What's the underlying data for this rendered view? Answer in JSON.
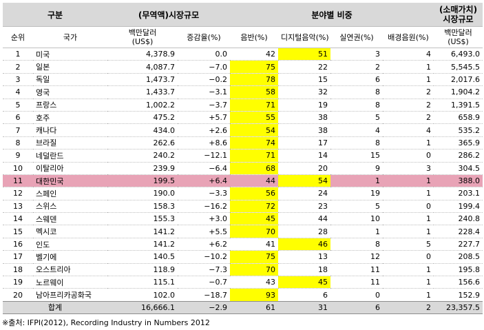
{
  "headers": {
    "group": "구분",
    "market_size": "(무역액)시장규모",
    "share": "분야별 비중",
    "retail_line1": "(소매가치)",
    "retail_line2": "시장규모",
    "rank": "순위",
    "country": "국가",
    "size_unit_line1": "백만달러",
    "size_unit_line2": "(US$)",
    "change": "증감율(%)",
    "physical": "음반(%)",
    "digital": "디지털음악(%)",
    "performance": "실연권(%)",
    "sync": "배경음원(%)",
    "retail_unit_line1": "백만달러",
    "retail_unit_line2": "(US$)"
  },
  "rows": [
    {
      "rank": "1",
      "country": "미국",
      "size": "4,378.9",
      "change": "0.0",
      "physical": "42",
      "digital": "51",
      "performance": "3",
      "sync": "4",
      "retail": "6,493.0"
    },
    {
      "rank": "2",
      "country": "일본",
      "size": "4,087.7",
      "change": "−7.0",
      "physical": "75",
      "digital": "22",
      "performance": "2",
      "sync": "1",
      "retail": "5,545.5"
    },
    {
      "rank": "3",
      "country": "독일",
      "size": "1,473.7",
      "change": "−0.2",
      "physical": "78",
      "digital": "15",
      "performance": "6",
      "sync": "1",
      "retail": "2,017.6"
    },
    {
      "rank": "4",
      "country": "영국",
      "size": "1,433.7",
      "change": "−3.1",
      "physical": "58",
      "digital": "32",
      "performance": "8",
      "sync": "2",
      "retail": "1,904.2"
    },
    {
      "rank": "5",
      "country": "프랑스",
      "size": "1,002.2",
      "change": "−3.7",
      "physical": "71",
      "digital": "19",
      "performance": "8",
      "sync": "2",
      "retail": "1,391.5"
    },
    {
      "rank": "6",
      "country": "호주",
      "size": "475.2",
      "change": "+5.7",
      "physical": "55",
      "digital": "38",
      "performance": "5",
      "sync": "2",
      "retail": "658.9"
    },
    {
      "rank": "7",
      "country": "캐나다",
      "size": "434.0",
      "change": "+2.6",
      "physical": "54",
      "digital": "38",
      "performance": "4",
      "sync": "4",
      "retail": "535.2"
    },
    {
      "rank": "8",
      "country": "브라질",
      "size": "262.6",
      "change": "+8.6",
      "physical": "74",
      "digital": "17",
      "performance": "8",
      "sync": "1",
      "retail": "365.9"
    },
    {
      "rank": "9",
      "country": "네덜란드",
      "size": "240.2",
      "change": "−12.1",
      "physical": "71",
      "digital": "14",
      "performance": "15",
      "sync": "0",
      "retail": "286.2"
    },
    {
      "rank": "10",
      "country": "이탈리아",
      "size": "239.9",
      "change": "−6.4",
      "physical": "68",
      "digital": "20",
      "performance": "9",
      "sync": "3",
      "retail": "304.5"
    },
    {
      "rank": "11",
      "country": "대한민국",
      "size": "199.5",
      "change": "+6.4",
      "physical": "44",
      "digital": "54",
      "performance": "1",
      "sync": "1",
      "retail": "388.0"
    },
    {
      "rank": "12",
      "country": "스페인",
      "size": "190.0",
      "change": "−3.3",
      "physical": "56",
      "digital": "24",
      "performance": "19",
      "sync": "1",
      "retail": "203.1"
    },
    {
      "rank": "13",
      "country": "스위스",
      "size": "158.3",
      "change": "−16.2",
      "physical": "72",
      "digital": "23",
      "performance": "5",
      "sync": "0",
      "retail": "199.4"
    },
    {
      "rank": "14",
      "country": "스웨덴",
      "size": "155.3",
      "change": "+3.0",
      "physical": "45",
      "digital": "44",
      "performance": "10",
      "sync": "1",
      "retail": "240.8"
    },
    {
      "rank": "15",
      "country": "멕시코",
      "size": "141.2",
      "change": "+5.5",
      "physical": "70",
      "digital": "28",
      "performance": "1",
      "sync": "1",
      "retail": "228.4"
    },
    {
      "rank": "16",
      "country": "인도",
      "size": "141.2",
      "change": "+6.2",
      "physical": "41",
      "digital": "46",
      "performance": "8",
      "sync": "5",
      "retail": "227.7"
    },
    {
      "rank": "17",
      "country": "벨기에",
      "size": "140.5",
      "change": "−10.2",
      "physical": "75",
      "digital": "13",
      "performance": "12",
      "sync": "0",
      "retail": "208.5"
    },
    {
      "rank": "18",
      "country": "오스트리아",
      "size": "118.9",
      "change": "−7.3",
      "physical": "70",
      "digital": "18",
      "performance": "11",
      "sync": "1",
      "retail": "195.8"
    },
    {
      "rank": "19",
      "country": "노르웨이",
      "size": "115.1",
      "change": "−0.7",
      "physical": "43",
      "digital": "45",
      "performance": "11",
      "sync": "1",
      "retail": "156.6"
    },
    {
      "rank": "20",
      "country": "남아프리카공화국",
      "size": "102.0",
      "change": "−18.7",
      "physical": "93",
      "digital": "6",
      "performance": "0",
      "sync": "1",
      "retail": "152.9"
    }
  ],
  "total": {
    "label": "합계",
    "size": "16,666.1",
    "change": "−2.9",
    "physical": "61",
    "digital": "31",
    "performance": "6",
    "sync": "2",
    "retail": "23,357.5"
  },
  "highlight_color": "#ffff00",
  "korea_row_color": "#e8a3b6",
  "header_bg_color": "#d9d9d9",
  "source": "※출처: IFPI(2012), Recording Industry in Numbers 2012"
}
